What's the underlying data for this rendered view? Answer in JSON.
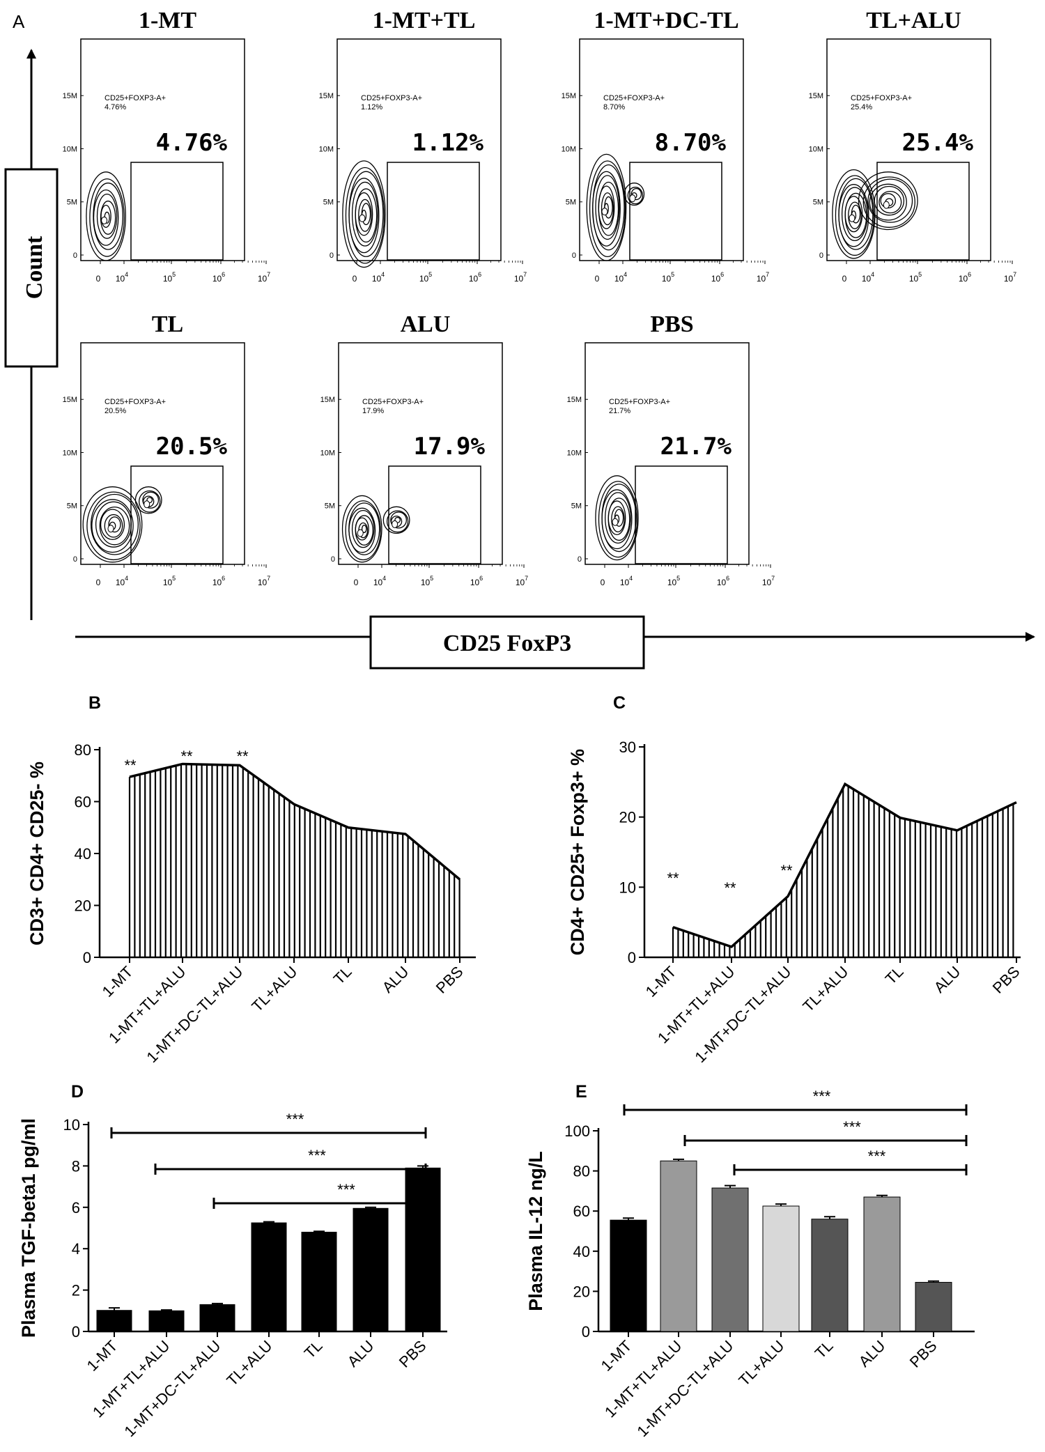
{
  "figure": {
    "panel_labels": {
      "A": "A",
      "B": "B",
      "C": "C",
      "D": "D",
      "E": "E"
    },
    "panel_a": {
      "y_axis_label": "Count",
      "x_axis_label": "CD25 FoxP3",
      "y_ticks": [
        "0",
        "5M",
        "10M",
        "15M"
      ],
      "x_ticks": [
        {
          "base": "0",
          "exp": ""
        },
        {
          "base": "10",
          "exp": "4"
        },
        {
          "base": "10",
          "exp": "5"
        },
        {
          "base": "10",
          "exp": "6"
        },
        {
          "base": "10",
          "exp": "7"
        }
      ],
      "gate_label": "CD25+FOXP3-A+",
      "plots": [
        {
          "title": "1-MT",
          "small_pct": "4.76%",
          "big_pct": "4.76%"
        },
        {
          "title": "1-MT+TL",
          "small_pct": "1.12%",
          "big_pct": "1.12%"
        },
        {
          "title": "1-MT+DC-TL",
          "small_pct": "8.70%",
          "big_pct": "8.70%"
        },
        {
          "title": "TL+ALU",
          "small_pct": "25.4%",
          "big_pct": "25.4%"
        },
        {
          "title": "TL",
          "small_pct": "20.5%",
          "big_pct": "20.5%"
        },
        {
          "title": "ALU",
          "small_pct": "17.9%",
          "big_pct": "17.9%"
        },
        {
          "title": "PBS",
          "small_pct": "21.7%",
          "big_pct": "21.7%"
        }
      ]
    }
  },
  "chart_data": [
    {
      "panel": "B",
      "type": "area",
      "ylabel": "CD3+ CD4+ CD25- %",
      "categories": [
        "1-MT",
        "1-MT+TL+ALU",
        "1-MT+DC-TL+ALU",
        "TL+ALU",
        "TL",
        "ALU",
        "PBS"
      ],
      "values": [
        69.5,
        74.5,
        74,
        59,
        50,
        47.5,
        30
      ],
      "ylim": [
        0,
        80
      ],
      "yticks": [
        "0",
        "20",
        "40",
        "60",
        "80"
      ],
      "annotations": [
        "**",
        "**",
        "**"
      ]
    },
    {
      "panel": "C",
      "type": "area",
      "ylabel": "CD4+ CD25+ Foxp3+ %",
      "categories": [
        "1-MT",
        "1-MT+TL+ALU",
        "1-MT+DC-TL+ALU",
        "TL+ALU",
        "TL",
        "ALU",
        "PBS"
      ],
      "values": [
        4.3,
        1.5,
        8.7,
        24.7,
        19.9,
        18.1,
        22.1
      ],
      "ylim": [
        0,
        30
      ],
      "yticks": [
        "0",
        "10",
        "20",
        "30"
      ],
      "annotations": [
        "**",
        "**",
        "**"
      ]
    },
    {
      "panel": "D",
      "type": "bar",
      "ylabel": "Plasma TGF-beta1 pg/ml",
      "categories": [
        "1-MT",
        "1-MT+TL+ALU",
        "1-MT+DC-TL+ALU",
        "TL+ALU",
        "TL",
        "ALU",
        "PBS"
      ],
      "values": [
        1.02,
        1.0,
        1.3,
        5.25,
        4.8,
        5.95,
        7.9
      ],
      "errors": [
        0.12,
        0.04,
        0.05,
        0.05,
        0.04,
        0.05,
        0.1
      ],
      "ylim": [
        0,
        10
      ],
      "yticks": [
        "0",
        "2",
        "4",
        "6",
        "8",
        "10"
      ],
      "significance": [
        "***",
        "***",
        "***"
      ]
    },
    {
      "panel": "E",
      "type": "bar",
      "ylabel": "Plasma IL-12 ng/L",
      "categories": [
        "1-MT",
        "1-MT+TL+ALU",
        "1-MT+DC-TL+ALU",
        "TL+ALU",
        "TL",
        "ALU",
        "PBS"
      ],
      "values": [
        55.5,
        85,
        71.5,
        62.5,
        56,
        67,
        24.5
      ],
      "errors": [
        1.0,
        0.8,
        1.2,
        1.0,
        1.2,
        0.8,
        0.6
      ],
      "ylim": [
        0,
        100
      ],
      "yticks": [
        "0",
        "20",
        "40",
        "60",
        "80",
        "100"
      ],
      "colors": [
        "#000000",
        "#9a9a9a",
        "#707070",
        "#d8d8d8",
        "#555555",
        "#9a9a9a",
        "#555555"
      ],
      "significance": [
        "***",
        "***",
        "***"
      ]
    }
  ]
}
